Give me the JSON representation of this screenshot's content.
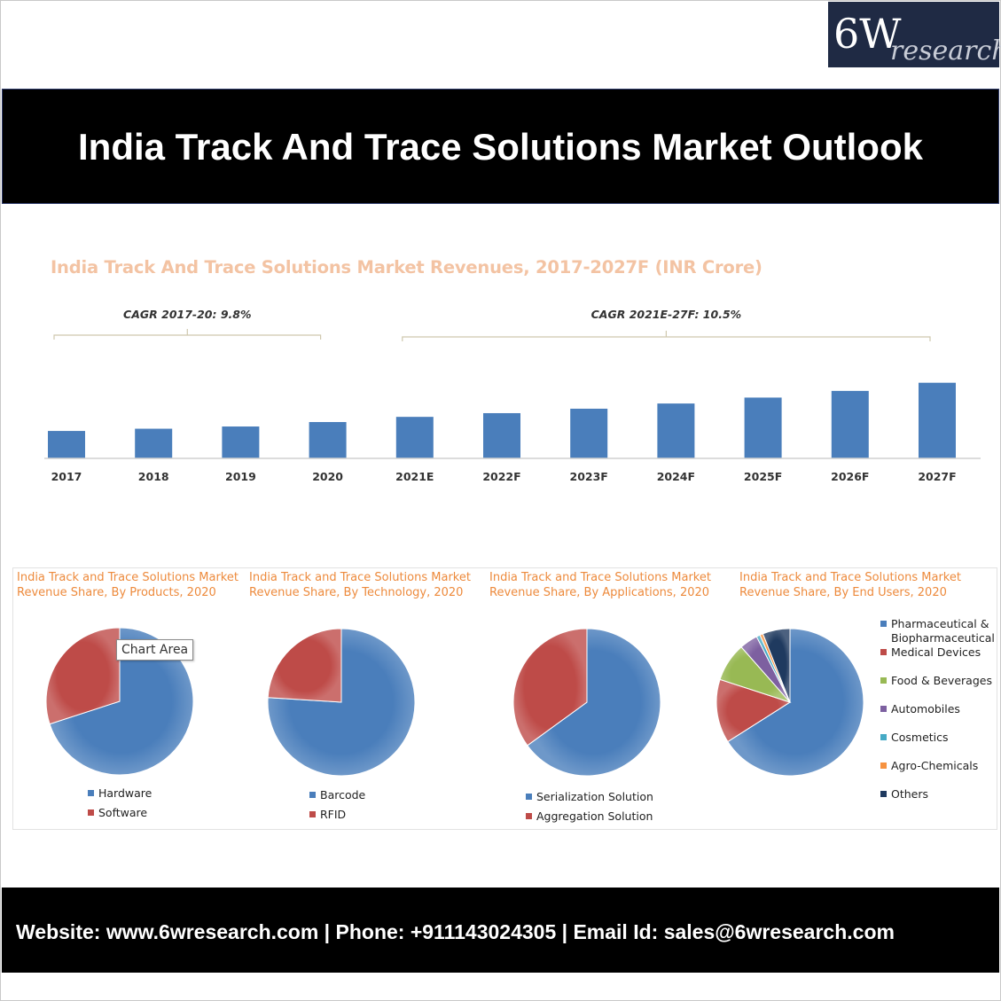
{
  "logo": {
    "main": "6W",
    "sub": "research"
  },
  "banner": {
    "title": "India Track And Trace Solutions Market Outlook"
  },
  "chart_data": [
    {
      "type": "bar",
      "title": "India Track And Trace Solutions Market Revenues, 2017-2027F (INR Crore)",
      "categories": [
        "2017",
        "2018",
        "2019",
        "2020",
        "2021E",
        "2022F",
        "2023F",
        "2024F",
        "2025F",
        "2026F",
        "2027F"
      ],
      "values": [
        37,
        40,
        43,
        49,
        56,
        61,
        67,
        74,
        82,
        91,
        102
      ],
      "ylim": [
        0,
        110
      ],
      "xlabel": "",
      "ylabel": "",
      "grid": false,
      "color": "#4a7ebb",
      "annotations": [
        {
          "text": "CAGR 2017-20: 9.8%",
          "from": "2017",
          "to": "2020"
        },
        {
          "text": "CAGR 2021E-27F: 10.5%",
          "from": "2021E",
          "to": "2027F"
        }
      ]
    },
    {
      "type": "pie",
      "title": "India Track and Trace Solutions Market Revenue Share, By Products, 2020",
      "labels": [
        "Hardware",
        "Software"
      ],
      "values": [
        70,
        30
      ],
      "colors": [
        "#4a7ebb",
        "#be4b48"
      ],
      "legend": "bottom"
    },
    {
      "type": "pie",
      "title": "India Track and Trace Solutions Market Revenue Share, By Technology, 2020",
      "labels": [
        "Barcode",
        "RFID"
      ],
      "values": [
        76,
        24
      ],
      "colors": [
        "#4a7ebb",
        "#be4b48"
      ],
      "legend": "bottom"
    },
    {
      "type": "pie",
      "title": "India Track and Trace Solutions Market Revenue Share, By Applications, 2020",
      "labels": [
        "Serialization Solution",
        "Aggregation Solution"
      ],
      "values": [
        65,
        35
      ],
      "colors": [
        "#4a7ebb",
        "#be4b48"
      ],
      "legend": "bottom"
    },
    {
      "type": "pie",
      "title": "India Track and Trace Solutions Market Revenue Share, By End Users, 2020",
      "labels": [
        "Pharmaceutical & Biopharmaceutical",
        "Medical Devices",
        "Food & Beverages",
        "Automobiles",
        "Cosmetics",
        "Agro-Chemicals",
        "Others"
      ],
      "values": [
        66,
        14,
        8.5,
        4,
        0.8,
        0.7,
        6
      ],
      "colors": [
        "#4a7ebb",
        "#be4b48",
        "#98b954",
        "#7d60a0",
        "#46aac5",
        "#f69240",
        "#1f3a5f"
      ],
      "legend": "right"
    }
  ],
  "tooltip": {
    "text": "Chart Area"
  },
  "footer": {
    "text": "Website: www.6wresearch.com | Phone: +911143024305 | Email Id: sales@6wresearch.com"
  }
}
